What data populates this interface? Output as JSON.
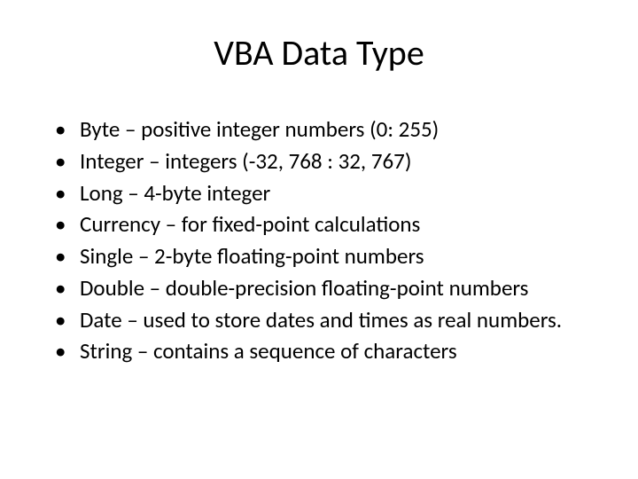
{
  "slide": {
    "title": "VBA Data Type",
    "title_fontsize": 40,
    "title_color": "#000000",
    "background_color": "#ffffff",
    "body_fontsize": 25,
    "body_color": "#000000",
    "font_family": "Calibri",
    "bullets": [
      "Byte – positive integer numbers (0: 255)",
      "Integer – integers (-32, 768 : 32, 767)",
      "Long – 4-byte integer",
      "Currency – for fixed-point calculations",
      "Single – 2-byte floating-point numbers",
      "Double – double-precision floating-point numbers",
      "Date – used to store dates and times as real numbers.",
      "String – contains a sequence of characters"
    ]
  }
}
